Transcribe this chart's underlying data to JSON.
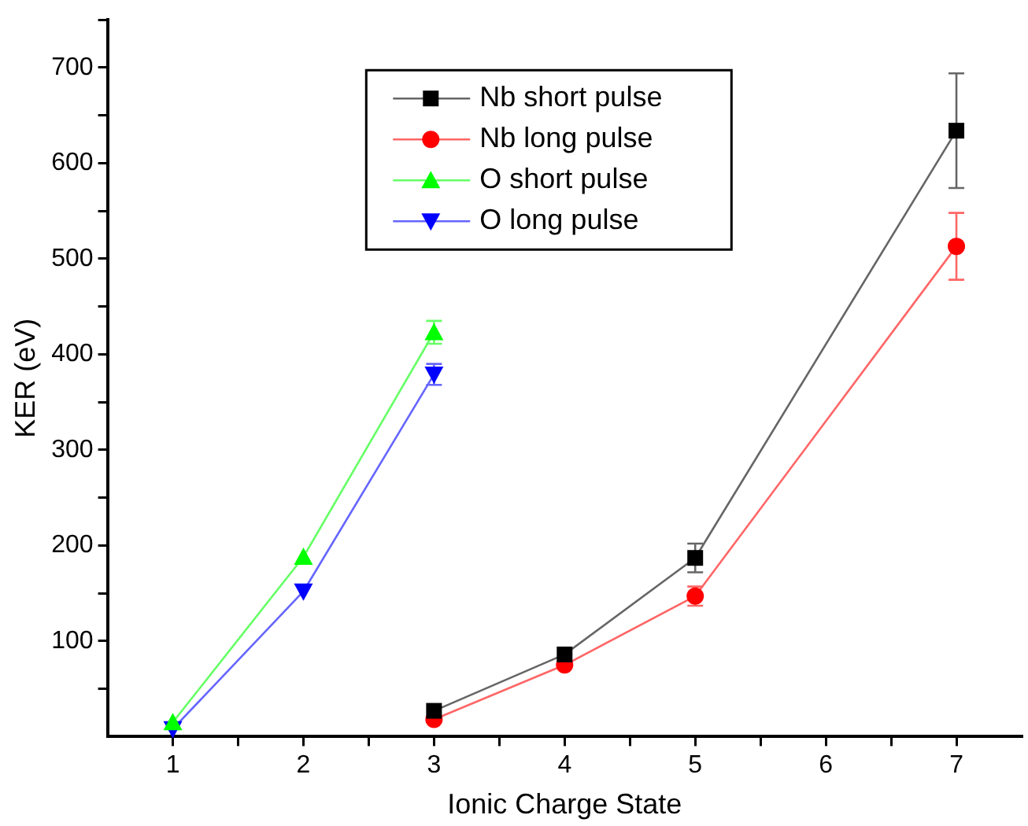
{
  "chart_data": {
    "type": "line",
    "xlabel": "Ionic Charge State",
    "ylabel": "KER (eV)",
    "xlim": [
      0.5,
      7.5
    ],
    "ylim": [
      0,
      750
    ],
    "xticks": [
      1,
      {
        "value": 1.5,
        "label": null
      },
      2,
      {
        "value": 2.5,
        "label": null
      },
      3,
      {
        "value": 3.5,
        "label": null
      },
      4,
      {
        "value": 4.5,
        "label": null
      },
      5,
      {
        "value": 5.5,
        "label": null
      },
      6,
      {
        "value": 6.5,
        "label": null
      },
      7
    ],
    "yticks": [
      {
        "value": 50,
        "label": null
      },
      100,
      {
        "value": 150,
        "label": null
      },
      200,
      {
        "value": 250,
        "label": null
      },
      300,
      {
        "value": 350,
        "label": null
      },
      400,
      {
        "value": 450,
        "label": null
      },
      500,
      {
        "value": 550,
        "label": null
      },
      600,
      {
        "value": 650,
        "label": null
      },
      700,
      {
        "value": 750,
        "label": null
      }
    ],
    "grid": false,
    "legend": "top",
    "line_style": "solid",
    "series": [
      {
        "name": "Nb short pulse",
        "color": "#000000",
        "marker": "square",
        "x": [
          3,
          4,
          5,
          7
        ],
        "values": [
          27,
          86,
          187,
          634
        ],
        "errors": [
          null,
          null,
          15,
          60
        ]
      },
      {
        "name": "Nb long pulse",
        "color": "#ff0000",
        "marker": "circle",
        "x": [
          3,
          4,
          5,
          7
        ],
        "values": [
          18,
          75,
          147,
          513
        ],
        "errors": [
          null,
          null,
          10,
          35
        ]
      },
      {
        "name": "O short pulse",
        "color": "#00ff00",
        "marker": "triangle",
        "x": [
          1,
          2,
          3
        ],
        "values": [
          15,
          188,
          423
        ],
        "errors": [
          null,
          null,
          12
        ]
      },
      {
        "name": "O long pulse",
        "color": "#0000ff",
        "marker": "triangle-down",
        "x": [
          1,
          2,
          3
        ],
        "values": [
          8,
          152,
          379
        ],
        "errors": [
          null,
          null,
          11
        ]
      }
    ]
  }
}
